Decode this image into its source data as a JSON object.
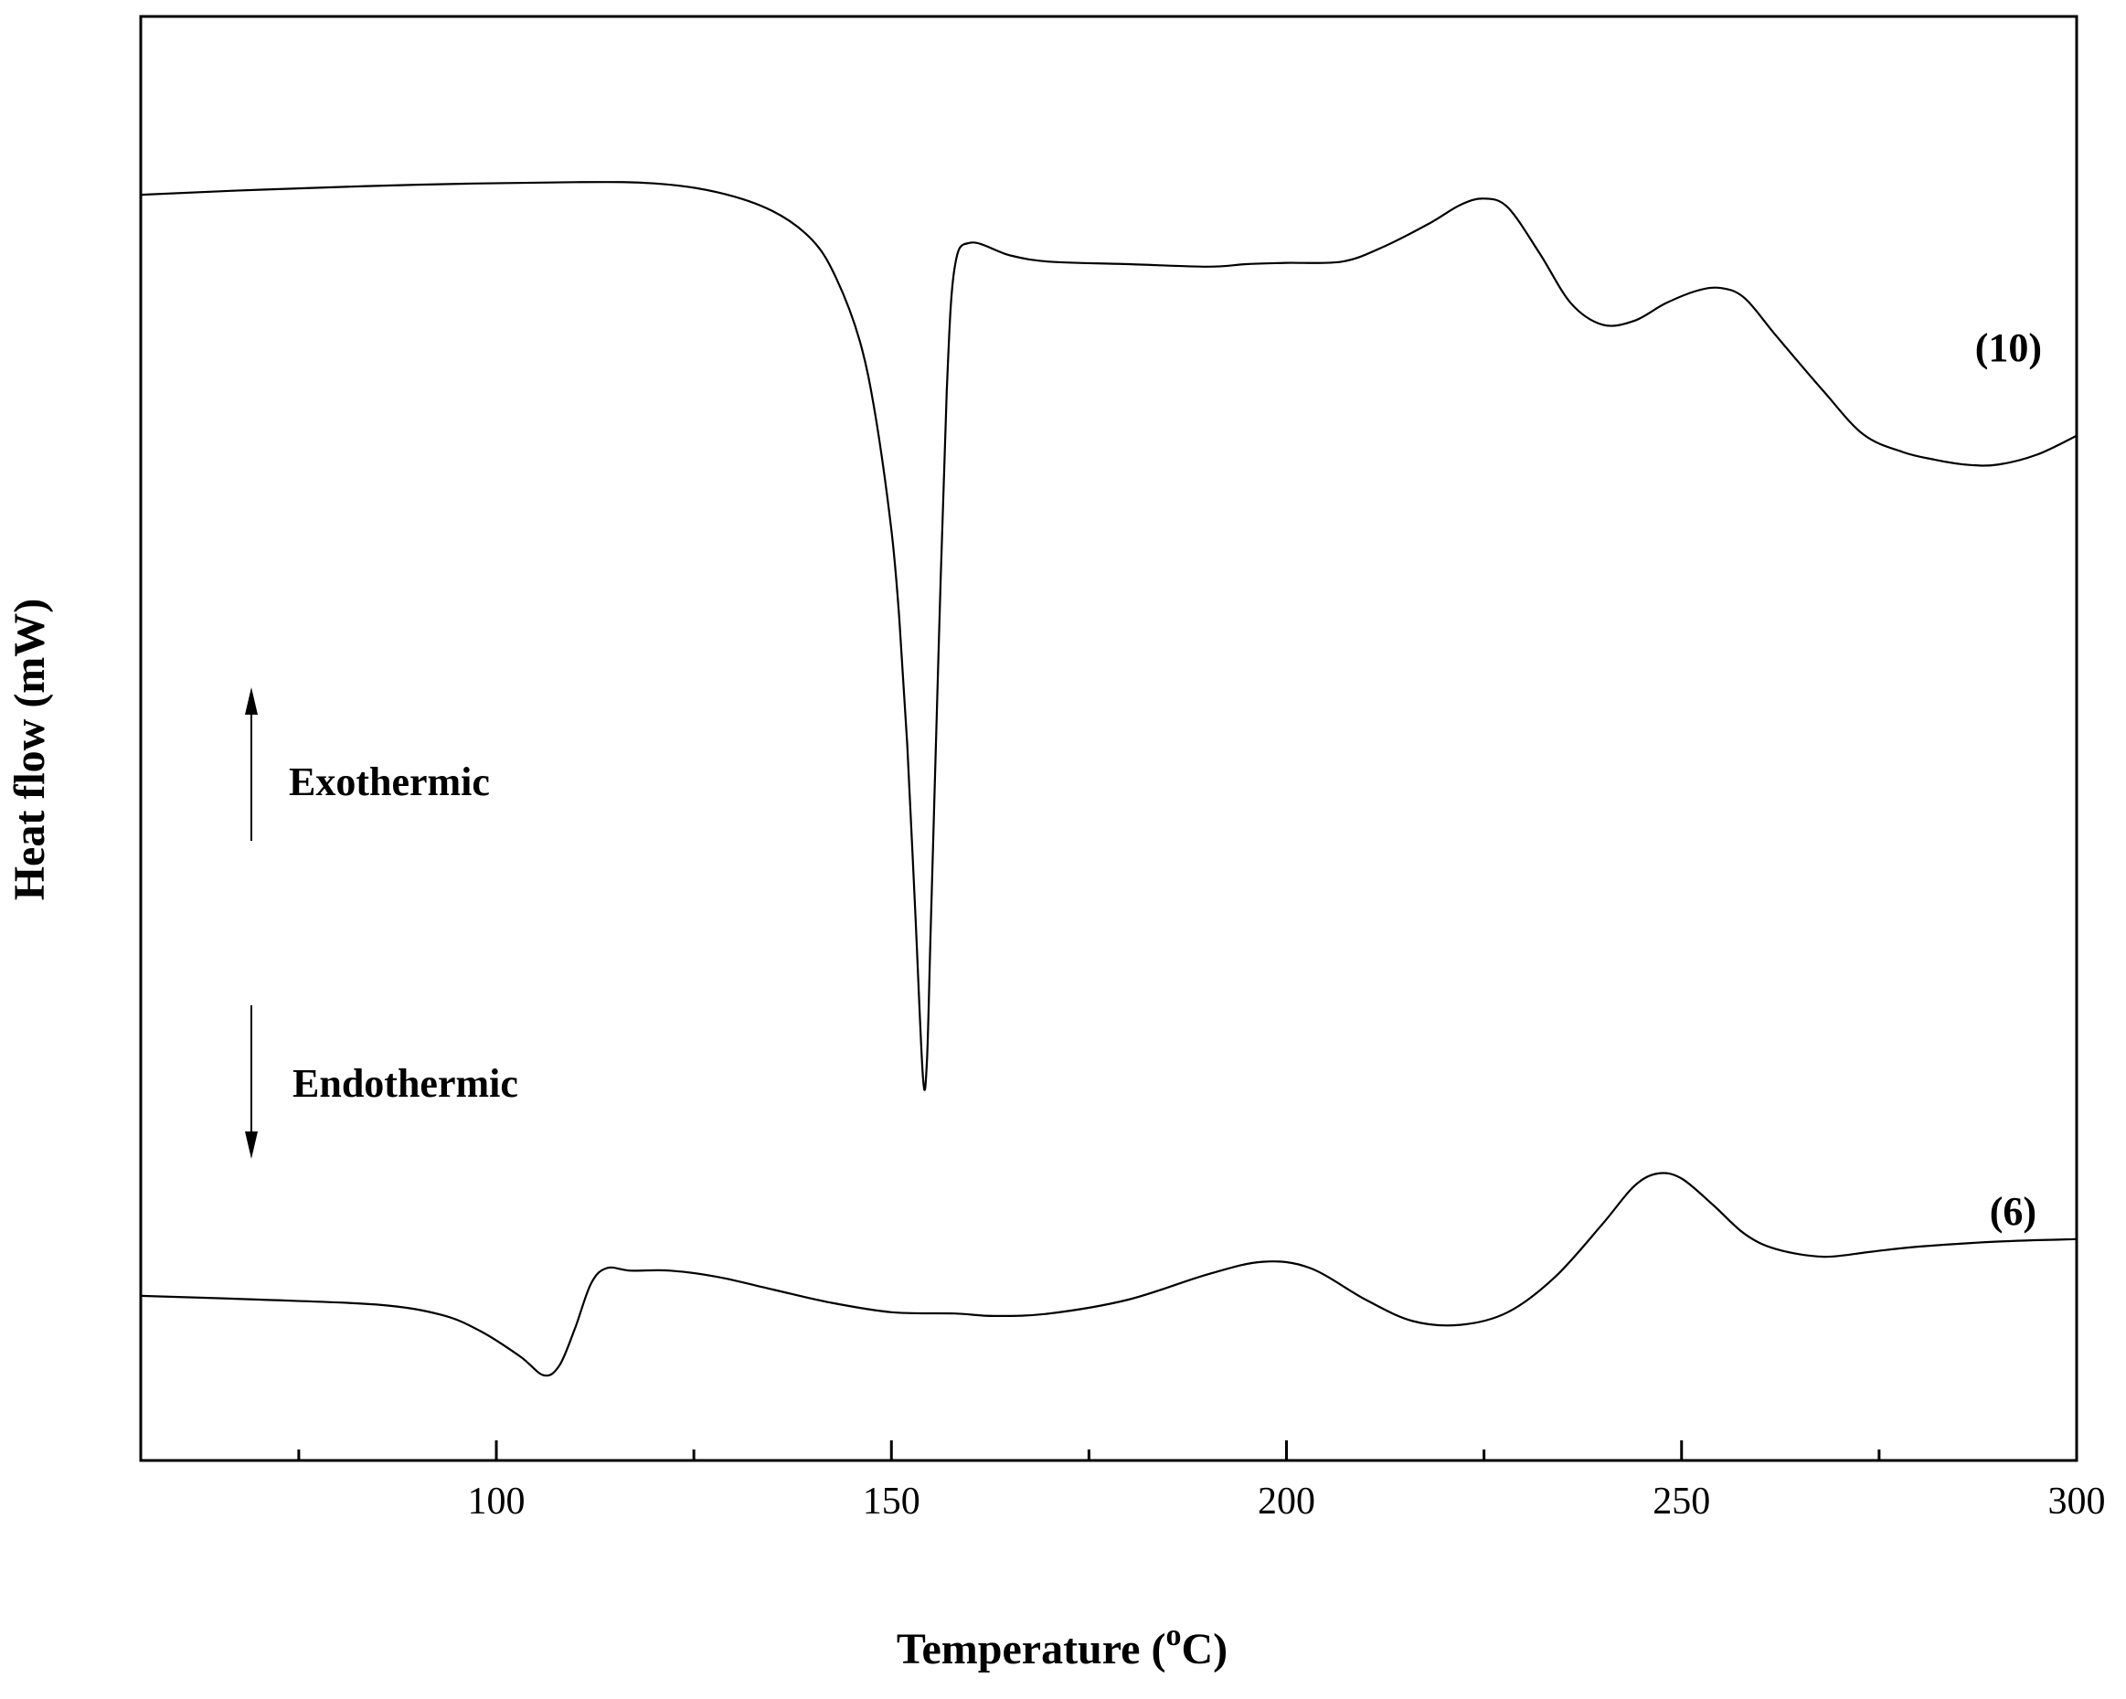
{
  "chart_data": {
    "type": "line",
    "title": "",
    "xlabel_prefix": "Temperature (",
    "xlabel_sup": "o",
    "xlabel_suffix": "C)",
    "ylabel": "Heat flow (mW)",
    "xlim": [
      55,
      300
    ],
    "ylim": [
      0,
      1
    ],
    "x_ticks": [
      100,
      150,
      200,
      250,
      300
    ],
    "x_tick_labels": [
      "100",
      "150",
      "200",
      "250",
      "300"
    ],
    "x_minor_ticks": [
      75,
      125,
      175,
      225,
      275
    ],
    "y_ticks": [],
    "grid": false,
    "annotations": {
      "exo": "Exothermic",
      "endo": "Endothermic"
    },
    "series": [
      {
        "name": "(10)",
        "x": [
          55,
          70,
          90,
          110,
          120,
          128,
          135,
          140,
          143,
          146,
          148,
          150,
          151,
          152,
          153,
          154,
          154.5,
          155,
          156,
          157,
          158,
          160,
          165,
          170,
          180,
          190,
          195,
          200,
          207,
          212,
          218,
          222,
          225,
          228,
          232,
          236,
          240,
          244,
          248,
          252,
          255,
          258,
          262,
          268,
          273,
          278,
          282,
          286,
          290,
          295,
          300
        ],
        "y": [
          0.976,
          0.98,
          0.984,
          0.986,
          0.985,
          0.978,
          0.963,
          0.94,
          0.91,
          0.86,
          0.8,
          0.71,
          0.64,
          0.54,
          0.41,
          0.276,
          0.29,
          0.4,
          0.62,
          0.82,
          0.918,
          0.938,
          0.928,
          0.923,
          0.921,
          0.919,
          0.921,
          0.922,
          0.923,
          0.934,
          0.953,
          0.968,
          0.973,
          0.966,
          0.93,
          0.89,
          0.873,
          0.876,
          0.89,
          0.9,
          0.902,
          0.894,
          0.864,
          0.82,
          0.786,
          0.772,
          0.766,
          0.762,
          0.762,
          0.77,
          0.785
        ]
      },
      {
        "name": "(6)",
        "x": [
          55,
          70,
          85,
          93,
          98,
          103,
          106,
          108,
          110,
          112,
          114,
          117,
          122,
          128,
          135,
          142,
          150,
          158,
          163,
          170,
          180,
          190,
          197,
          203,
          210,
          216,
          222,
          228,
          234,
          240,
          244,
          247,
          250,
          254,
          258,
          262,
          268,
          274,
          280,
          290,
          300
        ],
        "y": [
          0.103,
          0.1,
          0.096,
          0.088,
          0.075,
          0.055,
          0.04,
          0.048,
          0.078,
          0.113,
          0.125,
          0.123,
          0.123,
          0.118,
          0.108,
          0.098,
          0.09,
          0.089,
          0.087,
          0.089,
          0.1,
          0.12,
          0.13,
          0.125,
          0.1,
          0.083,
          0.08,
          0.09,
          0.118,
          0.16,
          0.19,
          0.2,
          0.196,
          0.175,
          0.152,
          0.14,
          0.134,
          0.138,
          0.142,
          0.146,
          0.148
        ]
      }
    ]
  }
}
